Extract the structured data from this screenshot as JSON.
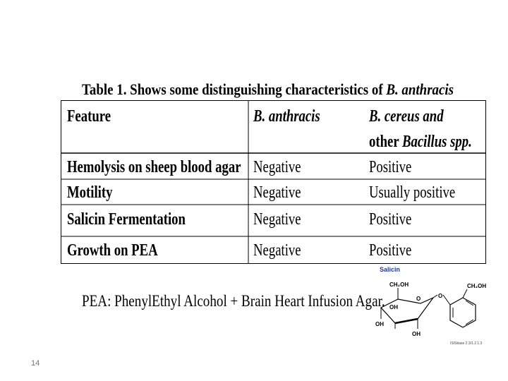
{
  "caption": {
    "prefix": "Table 1",
    "text": ". Shows some distinguishing characteristics of ",
    "species": "B. anthracis"
  },
  "table": {
    "headers": {
      "feature": "Feature",
      "anthracis": "B. anthracis",
      "cereus_line1": "B. cereus and",
      "cereus_line2_prefix": "other",
      "cereus_line2_italic": "Bacillus spp."
    },
    "rows": [
      {
        "feature": "Hemolysis on sheep blood agar",
        "anthracis": "Negative",
        "cereus": "Positive"
      },
      {
        "feature": "Motility",
        "anthracis": "Negative",
        "cereus": "Usually positive"
      },
      {
        "feature": "Salicin Fermentation",
        "anthracis": "Negative",
        "cereus": "Positive"
      },
      {
        "feature": "Growth on PEA",
        "anthracis": "Negative",
        "cereus": "Positive"
      }
    ]
  },
  "salicin": {
    "label": "Salicin",
    "groups": [
      "CH₂OH",
      "O",
      "OH",
      "OH",
      "OH",
      "O",
      "CH₂OH"
    ],
    "credit": "ISISbase 2.3/1.2.1.3"
  },
  "pea_note": "PEA: PhenylEthyl Alcohol + Brain Heart Infusion Agar.",
  "page_number": "14"
}
